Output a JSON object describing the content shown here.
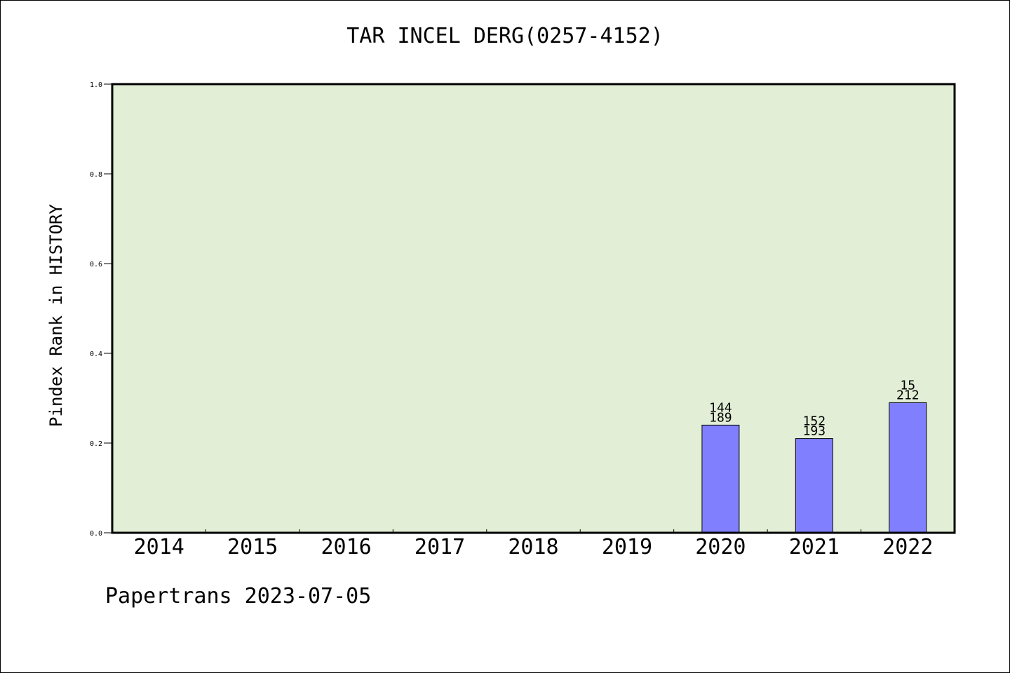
{
  "chart_data": {
    "type": "bar",
    "title": "TAR INCEL DERG(0257-4152)",
    "xlabel": "",
    "ylabel": "Pindex Rank in HISTORY",
    "categories": [
      "2014",
      "2015",
      "2016",
      "2017",
      "2018",
      "2019",
      "2020",
      "2021",
      "2022"
    ],
    "values": [
      null,
      null,
      null,
      null,
      null,
      null,
      0.24,
      0.21,
      0.29
    ],
    "label_top": [
      null,
      null,
      null,
      null,
      null,
      null,
      "144",
      "152",
      "15"
    ],
    "label_bottom": [
      null,
      null,
      null,
      null,
      null,
      null,
      "189",
      "193",
      "212"
    ],
    "ylim": [
      0,
      1.0
    ],
    "yticks": [
      "0.0",
      "0.2",
      "0.4",
      "0.6",
      "0.8",
      "1.0"
    ],
    "grid": false,
    "colors": {
      "plot_bg": "#e2efd6",
      "bar": "#8080ff"
    }
  },
  "footer": "Papertrans 2023-07-05"
}
